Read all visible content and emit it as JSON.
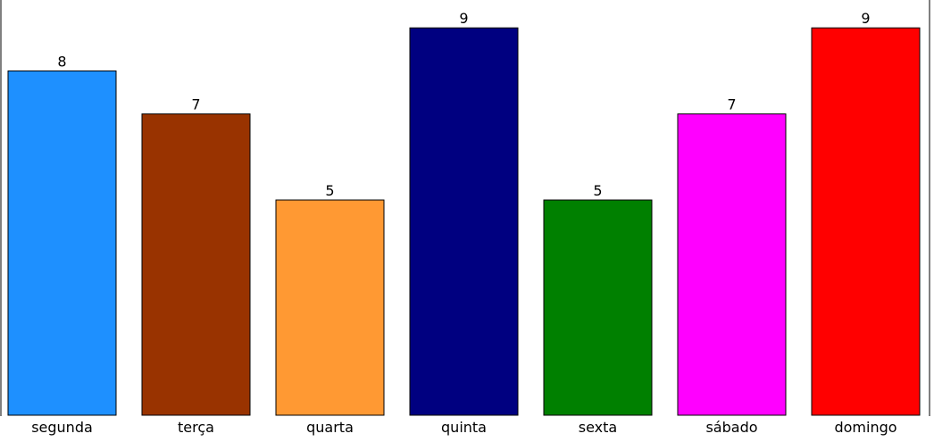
{
  "chart_data": {
    "type": "bar",
    "title": "",
    "xlabel": "",
    "ylabel": "",
    "ylim": [
      0,
      9
    ],
    "grid": false,
    "legend": "none",
    "categories": [
      "segunda",
      "terça",
      "quarta",
      "quinta",
      "sexta",
      "sábado",
      "domingo"
    ],
    "values": [
      8,
      7,
      5,
      9,
      5,
      7,
      9
    ],
    "value_labels": [
      "8",
      "7",
      "5",
      "9",
      "5",
      "7",
      "9"
    ],
    "colors": [
      "#1E90FF",
      "#993300",
      "#FF9933",
      "#000080",
      "#008000",
      "#FF00FF",
      "#FF0000"
    ]
  }
}
